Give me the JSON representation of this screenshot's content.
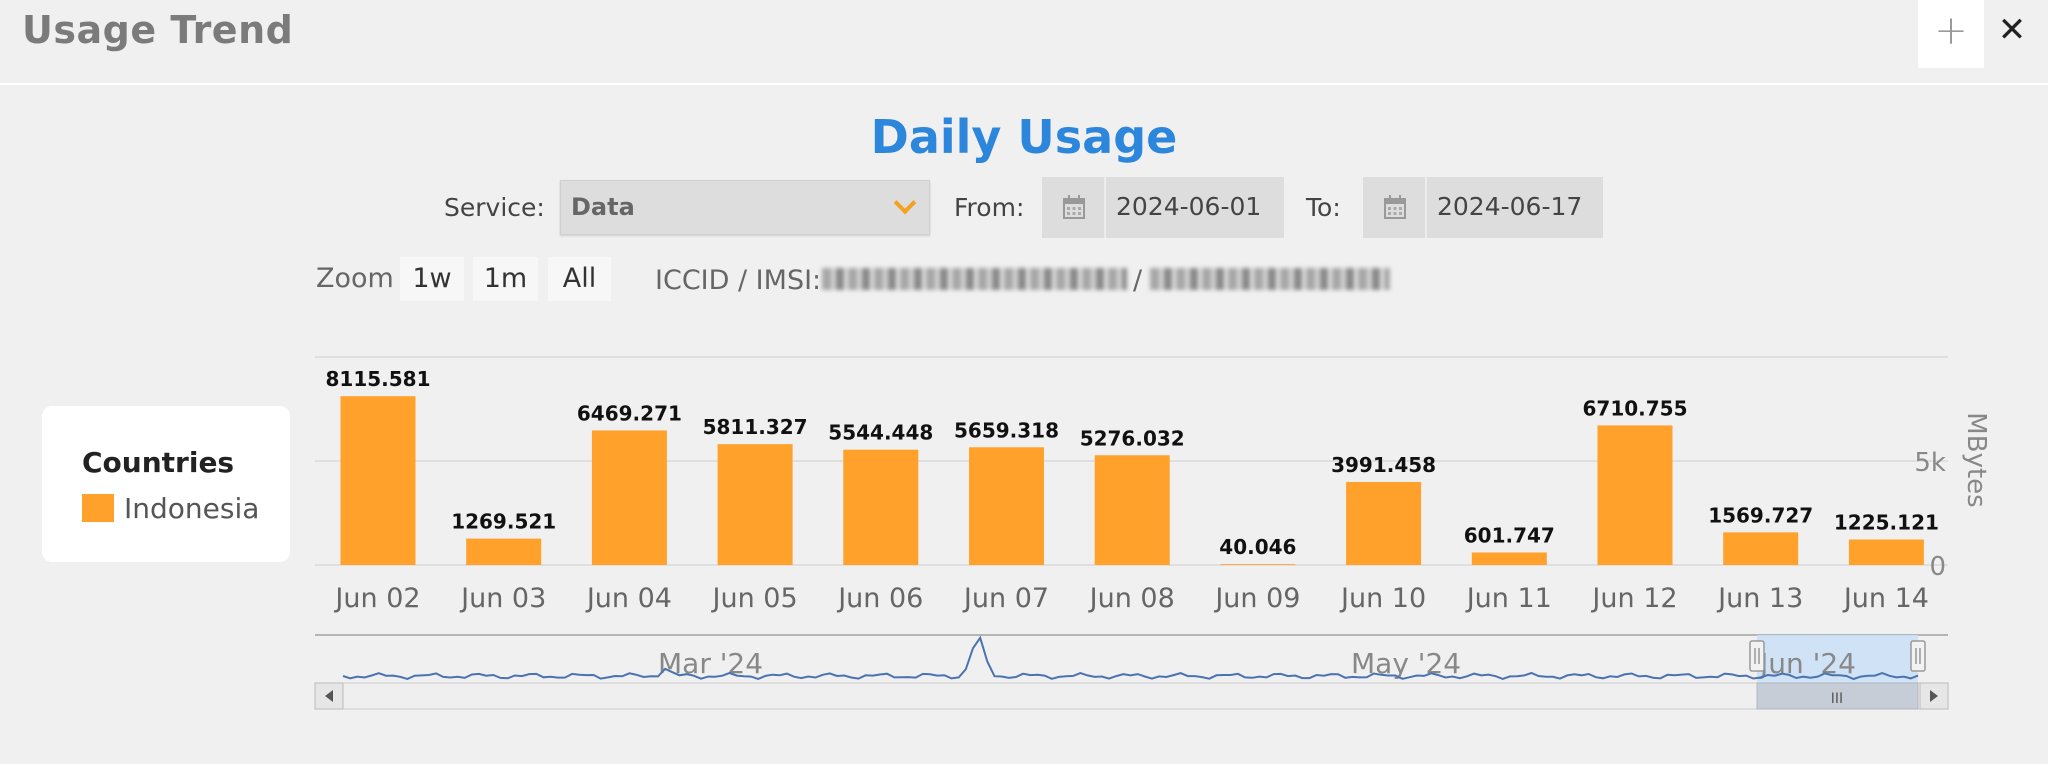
{
  "header": {
    "title": "Usage Trend",
    "add_label": "+",
    "close_label": "✕"
  },
  "filters": {
    "service_label": "Service:",
    "service_value": "Data",
    "from_label": "From:",
    "from_value": "2024-06-01",
    "to_label": "To:",
    "to_value": "2024-06-17"
  },
  "zoom": {
    "label": "Zoom",
    "buttons": [
      "1w",
      "1m",
      "All"
    ]
  },
  "identity": {
    "label": "ICCID / IMSI:",
    "separator": "/"
  },
  "legend": {
    "title": "Countries",
    "items": [
      {
        "name": "Indonesia",
        "color": "#ffa12b"
      }
    ]
  },
  "colors": {
    "bar": "#ffa12b",
    "title": "#2c86db",
    "navigator_line": "#4a73b0",
    "navigator_window": "#cce0f5"
  },
  "chart_data": {
    "type": "bar",
    "title": "Daily Usage",
    "categories": [
      "Jun 02",
      "Jun 03",
      "Jun 04",
      "Jun 05",
      "Jun 06",
      "Jun 07",
      "Jun 08",
      "Jun 09",
      "Jun 10",
      "Jun 11",
      "Jun 12",
      "Jun 13",
      "Jun 14"
    ],
    "series": [
      {
        "name": "Indonesia",
        "values": [
          8115.581,
          1269.521,
          6469.271,
          5811.327,
          5544.448,
          5659.318,
          5276.032,
          40.046,
          3991.458,
          601.747,
          6710.755,
          1569.727,
          1225.121
        ],
        "labels": [
          "8115.581",
          "1269.521",
          "6469.271",
          "5811.327",
          "5544.448",
          "5659.318",
          "5276.032",
          "40.046",
          "3991.458",
          "601.747",
          "6710.755",
          "1569.727",
          "1225.121"
        ]
      }
    ],
    "ylabel": "MBytes",
    "y_ticks": [
      "0",
      "5k"
    ],
    "y_tick_values": [
      0,
      5000
    ],
    "ylim": [
      0,
      10000
    ],
    "grid": true,
    "legend": "left",
    "navigator": {
      "labels": [
        "Mar '24",
        "May '24",
        "Jun '24"
      ],
      "scroll_grip": "III"
    }
  }
}
